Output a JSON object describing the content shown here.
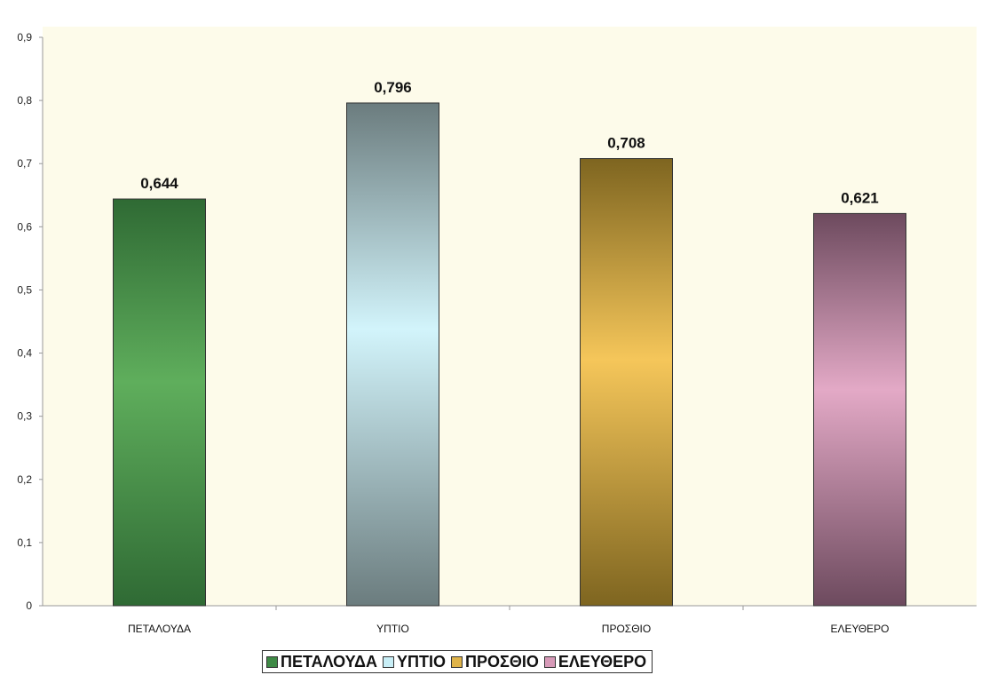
{
  "chart_data": {
    "type": "bar",
    "title": "",
    "xlabel": "",
    "ylabel": "",
    "categories": [
      "ΠΕΤΑΛΟΥΔΑ",
      "ΥΠΤΙΟ",
      "ΠΡΟΣΘΙΟ",
      "ΕΛΕΥΘΕΡΟ"
    ],
    "values": [
      0.644,
      0.796,
      0.708,
      0.621
    ],
    "value_labels": [
      "0,644",
      "0,796",
      "0,708",
      "0,621"
    ],
    "ylim": [
      0,
      0.9
    ],
    "yticks": [
      0,
      0.1,
      0.2,
      0.3,
      0.4,
      0.5,
      0.6,
      0.7,
      0.8,
      0.9
    ],
    "ytick_labels": [
      "0",
      "0,1",
      "0,2",
      "0,3",
      "0,4",
      "0,5",
      "0,6",
      "0,7",
      "0,8",
      "0,9"
    ],
    "grid": false,
    "legend_position": "bottom",
    "series_colors": [
      {
        "light": "#5fae5c",
        "dark": "#2f6a34",
        "swatch": "#3f8a46"
      },
      {
        "light": "#d2f4fb",
        "dark": "#6b7c7e",
        "swatch": "#c8eef6"
      },
      {
        "light": "#f5c65a",
        "dark": "#7e6520",
        "swatch": "#e0b44a"
      },
      {
        "light": "#e3a9c6",
        "dark": "#6d4a5e",
        "swatch": "#d79ab8"
      }
    ],
    "plot_background": "#fdfbea"
  },
  "legend": {
    "items": [
      "ΠΕΤΑΛΟΥΔΑ",
      "ΥΠΤΙΟ",
      "ΠΡΟΣΘΙΟ",
      "ΕΛΕΥΘΕΡΟ"
    ]
  }
}
